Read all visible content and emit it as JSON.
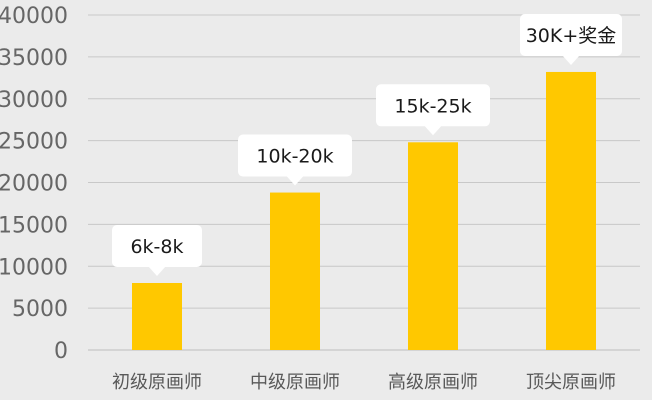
{
  "chart_data": {
    "type": "bar",
    "title": "",
    "xlabel": "",
    "ylabel": "",
    "categories": [
      "初级原画师",
      "中级原画师",
      "高级原画师",
      "顶尖原画师"
    ],
    "values": [
      8000,
      18800,
      24800,
      33200
    ],
    "data_labels": [
      "6k-8k",
      "10k-20k",
      "15k-25k",
      "30K+奖金"
    ],
    "ylim": [
      0,
      40000
    ],
    "yticks": [
      0,
      5000,
      10000,
      15000,
      20000,
      25000,
      30000,
      35000,
      40000
    ],
    "grid": true,
    "legend": "none",
    "colors": {
      "bar": "#ffc800",
      "background": "#ebebeb",
      "grid": "#c8c8c8",
      "label_bubble": "#ffffff"
    }
  }
}
